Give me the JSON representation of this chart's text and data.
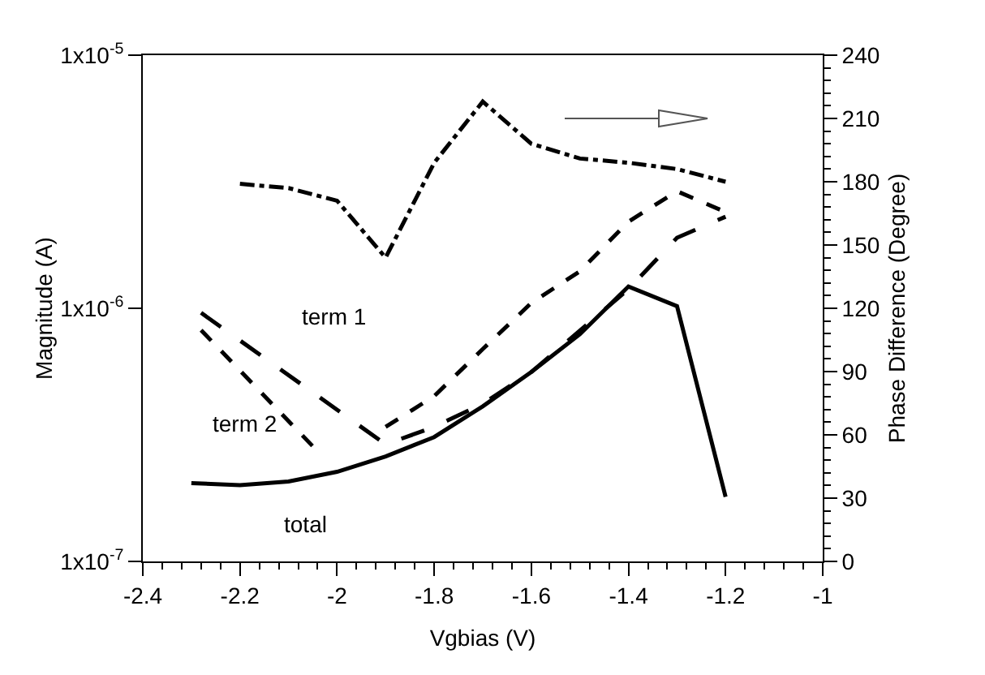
{
  "chart_data": {
    "type": "line",
    "xlabel": "Vgbias (V)",
    "ylabel": "Magnitude (A)",
    "y2label": "Phase Difference (Degree)",
    "xlim": [
      -2.4,
      -1
    ],
    "xticks": [
      -2.4,
      -2.2,
      -2,
      -1.8,
      -1.6,
      -1.4,
      -1.2,
      -1
    ],
    "ylim": [
      1e-07,
      1e-05
    ],
    "yticks": [
      {
        "value": 1e-07,
        "label": "1x10$^{-7}$"
      },
      {
        "value": 1e-06,
        "label": "1x10$^{-6}$"
      },
      {
        "value": 1e-05,
        "label": "1x10$^{-5}$"
      }
    ],
    "y2lim": [
      0,
      240
    ],
    "y2ticks": [
      0,
      30,
      60,
      90,
      120,
      150,
      180,
      210,
      240
    ],
    "log": "y",
    "grid": false,
    "legend": false,
    "marker": "none",
    "series": [
      {
        "name": "term 1",
        "color": "#000000",
        "line_style": "longdash",
        "x": [
          -2.28,
          -1.9,
          -1.8,
          -1.7,
          -1.6,
          -1.4,
          -1.3,
          -1.2
        ],
        "values": [
          9.6e-07,
          2.9e-07,
          3.4e-07,
          4.2e-07,
          5.6e-07,
          1.19e-06,
          1.9e-06,
          2.3e-06
        ]
      },
      {
        "name": "term 2",
        "color": "#000000",
        "line_style": "dashed",
        "x": [
          -2.28,
          -2.03,
          null,
          -1.9,
          -1.8,
          -1.7,
          -1.6,
          -1.5,
          -1.4,
          -1.3,
          -1.2
        ],
        "values": [
          8.2e-07,
          2.6e-07,
          null,
          3.4e-07,
          4.5e-07,
          6.9e-07,
          1.05e-06,
          1.4e-06,
          2.2e-06,
          2.9e-06,
          2.4e-06
        ]
      },
      {
        "name": "total",
        "color": "#000000",
        "line_style": "solid",
        "x": [
          -2.3,
          -2.2,
          -2.1,
          -2.0,
          -1.9,
          -1.8,
          -1.7,
          -1.6,
          -1.5,
          -1.4,
          -1.3,
          -1.2
        ],
        "values": [
          2.04e-07,
          2e-07,
          2.07e-07,
          2.26e-07,
          2.6e-07,
          3.1e-07,
          4.1e-07,
          5.6e-07,
          7.9e-07,
          1.22e-06,
          1.02e-06,
          1.8e-07
        ]
      },
      {
        "color": "#000000",
        "line_style": "dashdot",
        "axis": "y2",
        "x": [
          -2.2,
          -2.1,
          -2.0,
          -1.9,
          -1.8,
          -1.7,
          -1.6,
          -1.5,
          -1.4,
          -1.3,
          -1.2
        ],
        "values": [
          179,
          177,
          171,
          144,
          189,
          218,
          198,
          191,
          189,
          186,
          180
        ]
      }
    ]
  }
}
